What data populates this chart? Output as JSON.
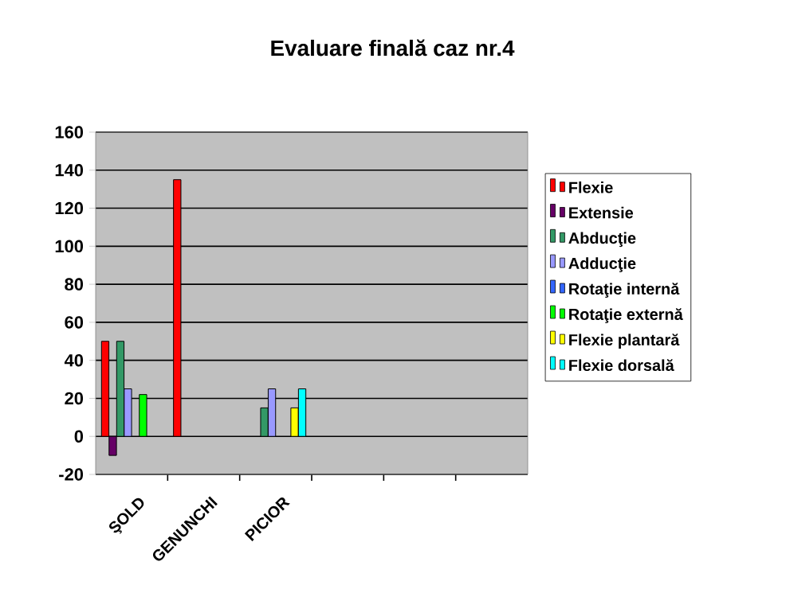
{
  "chart_data": {
    "type": "bar",
    "title": "Evaluare finală caz nr.4",
    "categories": [
      "ŞOLD",
      "GENUNCHI",
      "PICIOR",
      null,
      null,
      null
    ],
    "series": [
      {
        "name": "Flexie",
        "color": "#ff0000",
        "values": [
          50,
          135,
          null,
          null,
          null,
          null
        ]
      },
      {
        "name": "Extensie",
        "color": "#660066",
        "values": [
          -10,
          null,
          null,
          null,
          null,
          null
        ]
      },
      {
        "name": "Abducţie",
        "color": "#339966",
        "values": [
          50,
          null,
          15,
          null,
          null,
          null
        ]
      },
      {
        "name": "Adducţie",
        "color": "#9999ff",
        "values": [
          25,
          null,
          25,
          null,
          null,
          null
        ]
      },
      {
        "name": "Rotaţie internă",
        "color": "#3366ff",
        "values": [
          null,
          null,
          null,
          null,
          null,
          null
        ]
      },
      {
        "name": "Rotaţie externă",
        "color": "#00ff00",
        "values": [
          22,
          null,
          null,
          null,
          null,
          null
        ]
      },
      {
        "name": "Flexie plantară",
        "color": "#ffff00",
        "values": [
          null,
          null,
          15,
          null,
          null,
          null
        ]
      },
      {
        "name": "Flexie dorsală",
        "color": "#00ffff",
        "values": [
          null,
          null,
          25,
          null,
          null,
          null
        ]
      }
    ],
    "ylim": [
      -20,
      160
    ],
    "yticks": [
      -20,
      0,
      20,
      40,
      60,
      80,
      100,
      120,
      140,
      160
    ],
    "grid": "y",
    "legend": "right"
  }
}
